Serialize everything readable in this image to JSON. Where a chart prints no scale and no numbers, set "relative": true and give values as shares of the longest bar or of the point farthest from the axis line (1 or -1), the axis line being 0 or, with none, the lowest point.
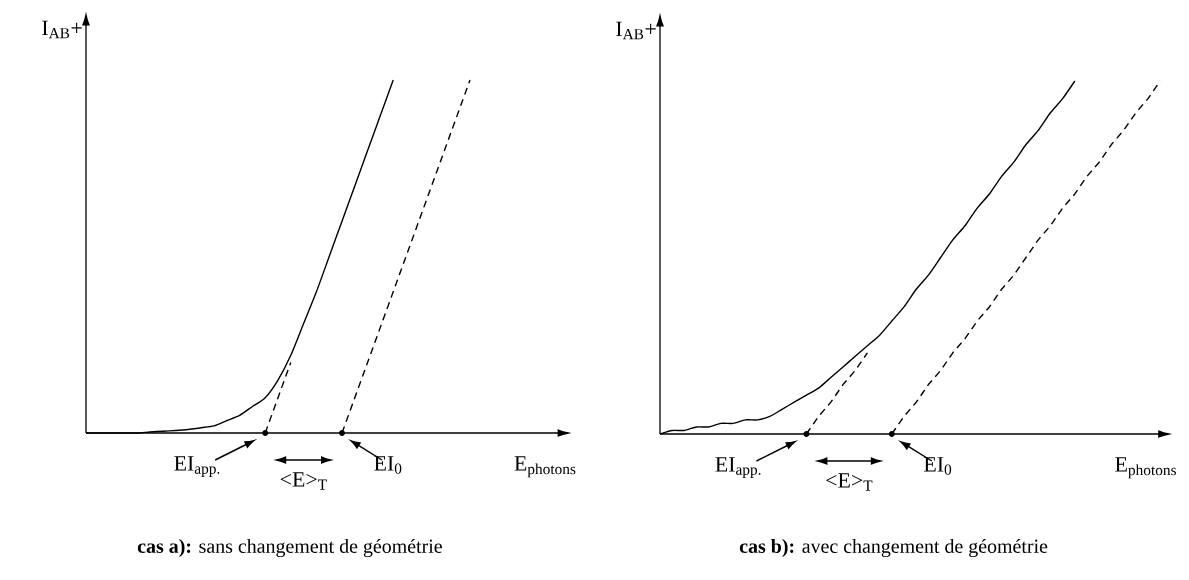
{
  "chart_data": [
    {
      "type": "line",
      "relative": true,
      "marker": "none",
      "title": "**cas a):** sans changement de géométrie",
      "xlabel": "E$_{photons}$",
      "ylabel": "I$_{AB}$+",
      "annotations": [
        "EI$_{app.}$",
        "<E>$_{T}$",
        "EI$_{0}$"
      ],
      "categories": [
        null,
        null,
        null,
        null,
        null,
        null,
        null,
        null,
        null,
        null,
        null,
        null,
        null,
        null,
        null,
        null,
        null,
        null,
        null,
        null,
        null,
        null,
        null,
        null,
        null,
        null,
        null,
        null,
        null,
        null,
        null,
        null,
        null,
        null,
        null,
        null,
        null,
        null
      ],
      "series": [
        {
          "color": "#000000",
          "line_style": "solid",
          "values": [
            0,
            0,
            0,
            0,
            0,
            0.003,
            0.005,
            0.007,
            0.01,
            0.015,
            0.02,
            0.035,
            0.05,
            0.075,
            0.1,
            0.15,
            0.22,
            0.31,
            0.4,
            0.5,
            0.6,
            0.7,
            0.8,
            0.9,
            1.0,
            null,
            null,
            null,
            null,
            null,
            null,
            null,
            null,
            null,
            null,
            null,
            null,
            null
          ]
        },
        {
          "color": "#000000",
          "line_style": "dashed",
          "values": [
            null,
            null,
            null,
            null,
            null,
            null,
            null,
            null,
            null,
            null,
            null,
            null,
            null,
            null,
            0,
            0.1,
            0.2,
            null,
            null,
            null,
            null,
            null,
            null,
            null,
            null,
            null,
            null,
            null,
            null,
            null,
            null,
            null,
            null,
            null,
            null,
            null,
            null,
            null
          ]
        },
        {
          "color": "#000000",
          "line_style": "dashed",
          "values": [
            null,
            null,
            null,
            null,
            null,
            null,
            null,
            null,
            null,
            null,
            null,
            null,
            null,
            null,
            null,
            null,
            null,
            null,
            null,
            null,
            0,
            0.1,
            0.2,
            0.3,
            0.4,
            0.5,
            0.6,
            0.7,
            0.8,
            0.9,
            1.0,
            null,
            null,
            null,
            null,
            null,
            null,
            null
          ]
        }
      ]
    },
    {
      "type": "line",
      "relative": true,
      "marker": "none",
      "title": "**cas b):** avec changement de géométrie",
      "xlabel": "E$_{photons}$",
      "ylabel": "I$_{AB}$+",
      "annotations": [
        "EI$_{app.}$",
        "<E>$_{T}$",
        "EI$_{0}$"
      ],
      "categories": [
        null,
        null,
        null,
        null,
        null,
        null,
        null,
        null,
        null,
        null,
        null,
        null,
        null,
        null,
        null,
        null,
        null,
        null,
        null,
        null,
        null,
        null,
        null,
        null,
        null,
        null,
        null,
        null,
        null,
        null,
        null,
        null,
        null,
        null,
        null,
        null,
        null,
        null,
        null,
        null,
        null,
        null
      ],
      "series": [
        {
          "color": "#000000",
          "line_style": "solid",
          "values": [
            0,
            0.01,
            0.01,
            0.02,
            0.02,
            0.03,
            0.03,
            0.04,
            0.04,
            0.05,
            0.07,
            0.09,
            0.11,
            0.13,
            0.16,
            0.19,
            0.22,
            0.25,
            0.28,
            0.32,
            0.36,
            0.41,
            0.45,
            0.5,
            0.55,
            0.59,
            0.64,
            0.68,
            0.73,
            0.77,
            0.82,
            0.86,
            0.91,
            0.95,
            1.0,
            null,
            null,
            null,
            null,
            null,
            null,
            null
          ]
        },
        {
          "color": "#000000",
          "line_style": "dashed",
          "values": [
            null,
            null,
            null,
            null,
            null,
            null,
            null,
            null,
            null,
            null,
            null,
            null,
            0,
            0.05,
            0.09,
            0.14,
            0.18,
            0.23,
            null,
            null,
            null,
            null,
            null,
            null,
            null,
            null,
            null,
            null,
            null,
            null,
            null,
            null,
            null,
            null,
            null,
            null,
            null,
            null,
            null,
            null,
            null,
            null
          ]
        },
        {
          "color": "#000000",
          "line_style": "dashed",
          "values": [
            null,
            null,
            null,
            null,
            null,
            null,
            null,
            null,
            null,
            null,
            null,
            null,
            null,
            null,
            null,
            null,
            null,
            null,
            null,
            0,
            0.05,
            0.09,
            0.14,
            0.18,
            0.23,
            0.27,
            0.32,
            0.36,
            0.41,
            0.45,
            0.5,
            0.55,
            0.59,
            0.64,
            0.68,
            0.73,
            0.77,
            0.82,
            0.86,
            0.91,
            0.95,
            1.0
          ]
        }
      ]
    }
  ]
}
